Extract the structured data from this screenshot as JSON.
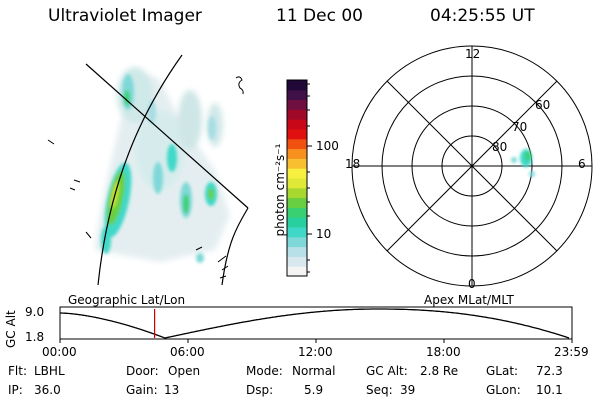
{
  "header": {
    "title": "Ultraviolet Imager",
    "date": "11 Dec 00",
    "time": "04:25:55 UT"
  },
  "colorbar": {
    "unit_label": "photon cm⁻²s⁻¹",
    "ticks": [
      "100",
      "10"
    ],
    "colors": [
      "#f4f4f4",
      "#d8e8ee",
      "#b8e0e8",
      "#7fd8d8",
      "#3fd8c8",
      "#28d0a0",
      "#38d070",
      "#68d040",
      "#a8d830",
      "#e0e838",
      "#f8f040",
      "#f8c030",
      "#f89020",
      "#f05010",
      "#e01010",
      "#c80818",
      "#a00828",
      "#701040",
      "#401048",
      "#200838"
    ]
  },
  "left_panel": {
    "label": "Geographic Lat/Lon"
  },
  "right_panel": {
    "label": "Apex MLat/MLT",
    "mlt_labels": {
      "top": "12",
      "bottom": "0",
      "left": "18",
      "right": "6"
    },
    "mlat_labels": [
      "60",
      "70",
      "80"
    ]
  },
  "altitude_plot": {
    "axis_label": "GC Alt",
    "y_ticks": [
      "9.0",
      "1.8"
    ],
    "x_ticks": [
      "00:00",
      "06:00",
      "12:00",
      "18:00",
      "23:59"
    ],
    "current_time_fraction": 0.1847,
    "marker_color": "#d00000"
  },
  "info": {
    "flt": {
      "label": "Flt:",
      "value": "LBHL"
    },
    "ip": {
      "label": "IP:",
      "value": "36.0"
    },
    "door": {
      "label": "Door:",
      "value": "Open"
    },
    "gain": {
      "label": "Gain:",
      "value": "13"
    },
    "mode": {
      "label": "Mode:",
      "value": "Normal"
    },
    "dsp": {
      "label": "Dsp:",
      "value": "5.9"
    },
    "gcalt": {
      "label": "GC Alt:",
      "value": "2.8 Re"
    },
    "seq": {
      "label": "Seq:",
      "value": "39"
    },
    "glat": {
      "label": "GLat:",
      "value": "72.3"
    },
    "glon": {
      "label": "GLon:",
      "value": "10.1"
    }
  }
}
